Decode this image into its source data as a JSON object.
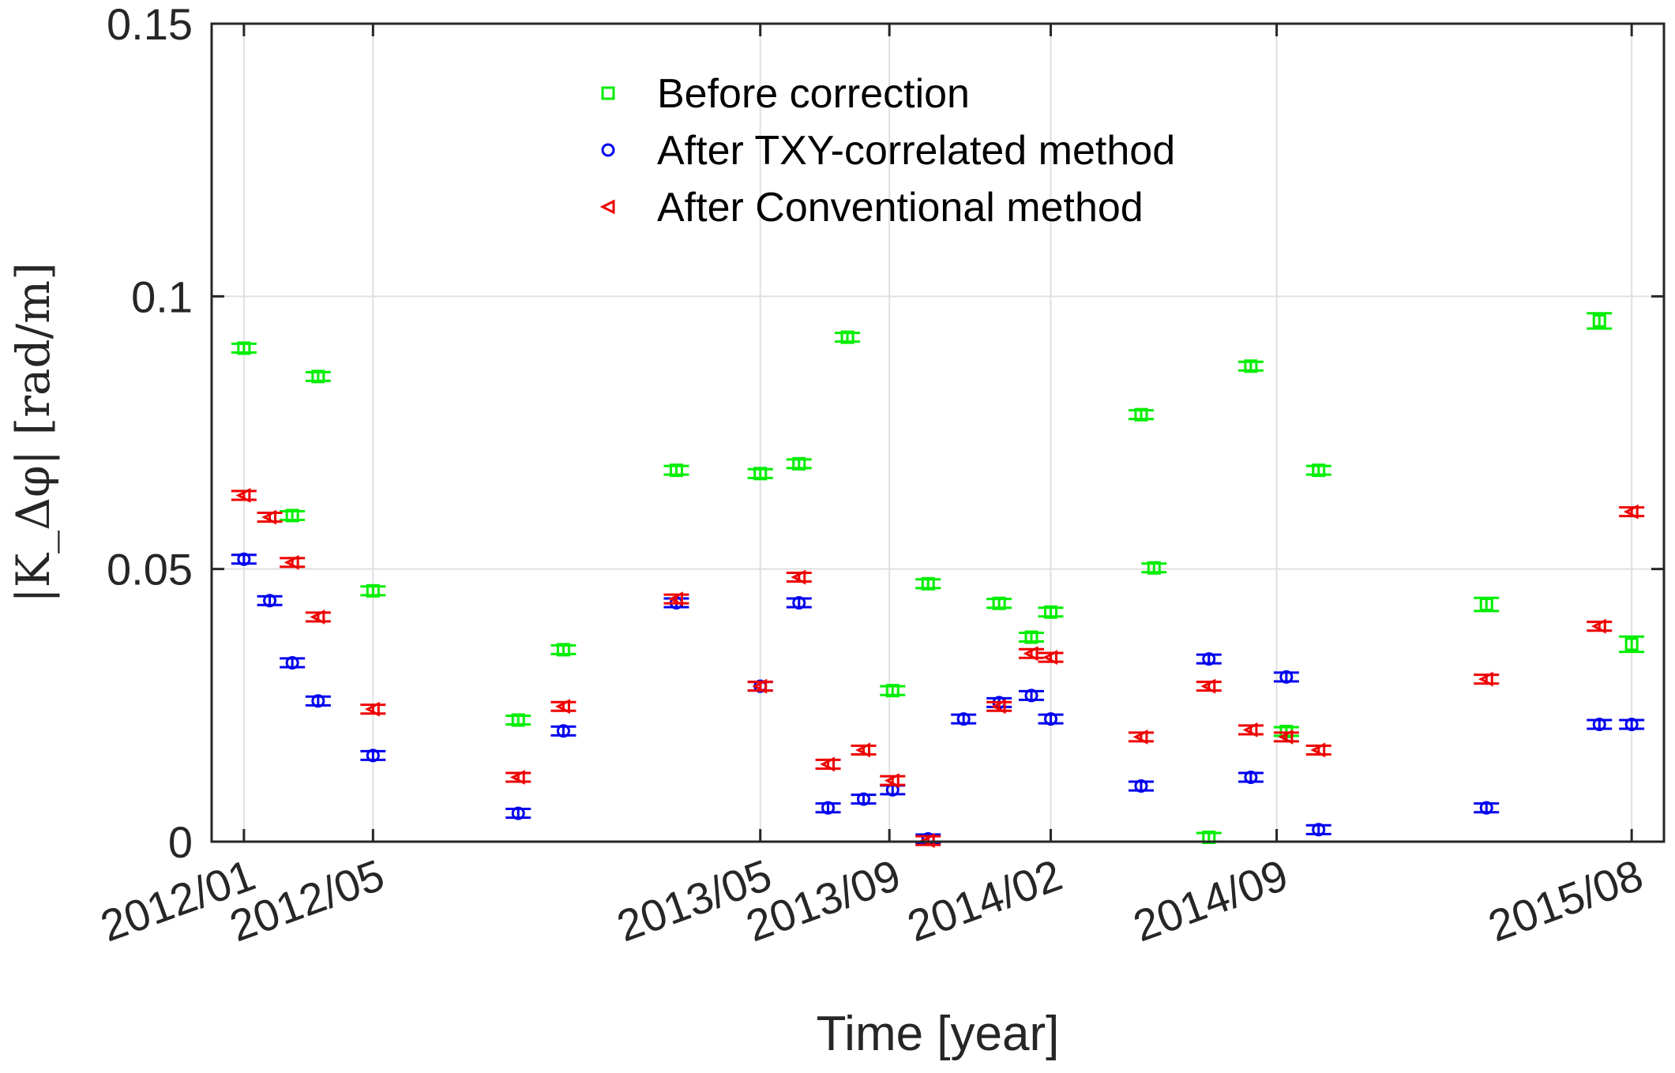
{
  "chart_data": {
    "type": "scatter",
    "title": "",
    "xlabel": "Time [year]",
    "ylabel": "|K_Δφ| [rad/m]",
    "ylim": [
      0,
      0.15
    ],
    "xlim": [
      0,
      45
    ],
    "grid": true,
    "legend_position": "top-center",
    "yticks": [
      {
        "value": 0,
        "label": "0"
      },
      {
        "value": 0.05,
        "label": "0.05"
      },
      {
        "value": 0.1,
        "label": "0.1"
      },
      {
        "value": 0.15,
        "label": "0.15"
      }
    ],
    "xticks": [
      {
        "value": 1,
        "label": "2012/01"
      },
      {
        "value": 5,
        "label": "2012/05"
      },
      {
        "value": 17,
        "label": "2013/05"
      },
      {
        "value": 21,
        "label": "2013/09"
      },
      {
        "value": 26,
        "label": "2014/02"
      },
      {
        "value": 33,
        "label": "2014/09"
      },
      {
        "value": 44,
        "label": "2015/08"
      }
    ],
    "series": [
      {
        "name": "Before correction",
        "marker": "square",
        "color": "#00ee00",
        "x": [
          1,
          2.5,
          3.3,
          5,
          9.5,
          10.9,
          14.4,
          17,
          18.2,
          19.7,
          21.1,
          22.2,
          24.4,
          25.4,
          26,
          28.8,
          29.2,
          30.9,
          32.2,
          33.3,
          34.3,
          39.5,
          43,
          44
        ],
        "y": [
          0.0905,
          0.0598,
          0.0853,
          0.046,
          0.0223,
          0.0352,
          0.0681,
          0.0675,
          0.0693,
          0.0925,
          0.0277,
          0.0473,
          0.0437,
          0.0375,
          0.0421,
          0.0783,
          0.0502,
          0.0008,
          0.0872,
          0.0202,
          0.0681,
          0.0435,
          0.0955,
          0.0362
        ],
        "err": [
          0.0008,
          0.0008,
          0.0008,
          0.0008,
          0.0008,
          0.0008,
          0.0008,
          0.0008,
          0.0008,
          0.0008,
          0.0008,
          0.0008,
          0.0008,
          0.0008,
          0.0008,
          0.0008,
          0.0008,
          0.0008,
          0.0008,
          0.0008,
          0.0008,
          0.0012,
          0.0014,
          0.0014
        ]
      },
      {
        "name": "After TXY-correlated method",
        "marker": "circle",
        "color": "#0000ee",
        "x": [
          1,
          1.8,
          2.5,
          3.3,
          5,
          9.5,
          10.9,
          14.4,
          17,
          18.2,
          19.1,
          20.2,
          21.1,
          22.2,
          23.3,
          24.4,
          25.4,
          26,
          28.8,
          30.9,
          32.2,
          33.3,
          34.3,
          39.5,
          43,
          44
        ],
        "y": [
          0.0518,
          0.0442,
          0.0328,
          0.0258,
          0.0158,
          0.0052,
          0.0203,
          0.0438,
          0.0285,
          0.0438,
          0.0062,
          0.0078,
          0.0095,
          0.0005,
          0.0225,
          0.0255,
          0.0268,
          0.0225,
          0.0102,
          0.0335,
          0.0118,
          0.0302,
          0.0022,
          0.0062,
          0.0215,
          0.0215
        ],
        "err": [
          0.0008,
          0.0008,
          0.0008,
          0.0008,
          0.0008,
          0.0008,
          0.0008,
          0.0008,
          0.0008,
          0.0008,
          0.0008,
          0.0008,
          0.0008,
          0.0008,
          0.0008,
          0.0008,
          0.0008,
          0.0008,
          0.0008,
          0.0008,
          0.0008,
          0.0008,
          0.0008,
          0.0008,
          0.0008,
          0.0008
        ]
      },
      {
        "name": "After Conventional method",
        "marker": "triangle-left",
        "color": "#ee0000",
        "x": [
          1,
          1.8,
          2.5,
          3.3,
          5,
          9.5,
          10.9,
          14.4,
          17,
          18.2,
          19.1,
          20.2,
          21.1,
          22.2,
          24.4,
          25.4,
          26,
          28.8,
          30.9,
          32.2,
          33.3,
          34.3,
          39.5,
          43,
          44
        ],
        "y": [
          0.0635,
          0.0595,
          0.0512,
          0.0412,
          0.0243,
          0.0118,
          0.0248,
          0.0445,
          0.0285,
          0.0485,
          0.0142,
          0.0168,
          0.0112,
          0.0002,
          0.0248,
          0.0345,
          0.0338,
          0.0192,
          0.0285,
          0.0205,
          0.0192,
          0.0168,
          0.0298,
          0.0395,
          0.0605
        ],
        "err": [
          0.0008,
          0.0008,
          0.0008,
          0.0008,
          0.0008,
          0.0008,
          0.0008,
          0.0008,
          0.0008,
          0.0008,
          0.0008,
          0.0008,
          0.0008,
          0.0008,
          0.0008,
          0.0008,
          0.0008,
          0.0008,
          0.0008,
          0.0008,
          0.0008,
          0.0008,
          0.0008,
          0.0008,
          0.0008
        ]
      }
    ]
  }
}
